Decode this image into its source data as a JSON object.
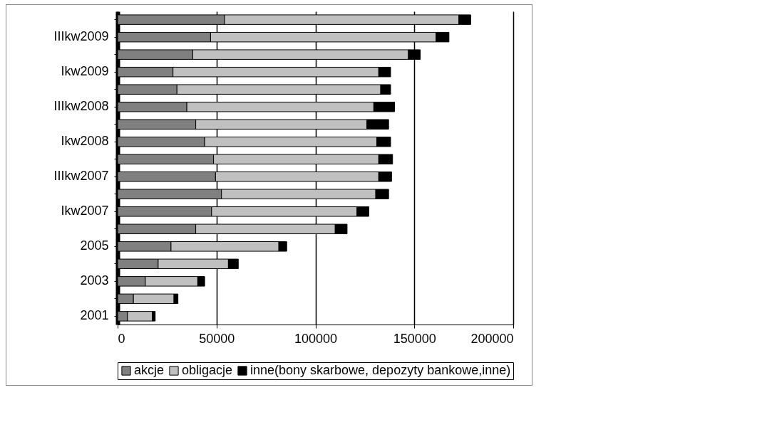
{
  "chart_data": {
    "type": "bar",
    "orientation": "horizontal",
    "stacked": true,
    "categories": [
      null,
      "IIIkw2009",
      null,
      "Ikw2009",
      null,
      "IIIkw2008",
      null,
      "Ikw2008",
      null,
      "IIIkw2007",
      null,
      "Ikw2007",
      null,
      "2005",
      null,
      "2003",
      null,
      "2001"
    ],
    "series": [
      {
        "name": "akcje",
        "color": "#808080",
        "values": [
          54000,
          47000,
          38000,
          28000,
          30000,
          35000,
          39500,
          44000,
          48500,
          49500,
          52500,
          47500,
          39500,
          27000,
          20500,
          14000,
          8000,
          5000
        ]
      },
      {
        "name": "obligacje",
        "color": "#c0c0c0",
        "values": [
          118500,
          114000,
          109000,
          104000,
          103000,
          94500,
          86500,
          87000,
          83500,
          82500,
          78000,
          73500,
          70500,
          54500,
          35500,
          26500,
          20500,
          12500
        ]
      },
      {
        "name": "inne(bony skarbowe, depozyty bankowe,inne)",
        "color": "#000000",
        "values": [
          6000,
          6500,
          6000,
          6000,
          5000,
          10500,
          11000,
          7000,
          7000,
          6500,
          6500,
          6000,
          6000,
          4000,
          5000,
          3500,
          2000,
          1500
        ]
      }
    ],
    "xlim": [
      0,
      200000
    ],
    "xticks": [
      0,
      50000,
      100000,
      150000,
      200000
    ],
    "grid": "x",
    "legend": "bottom"
  }
}
